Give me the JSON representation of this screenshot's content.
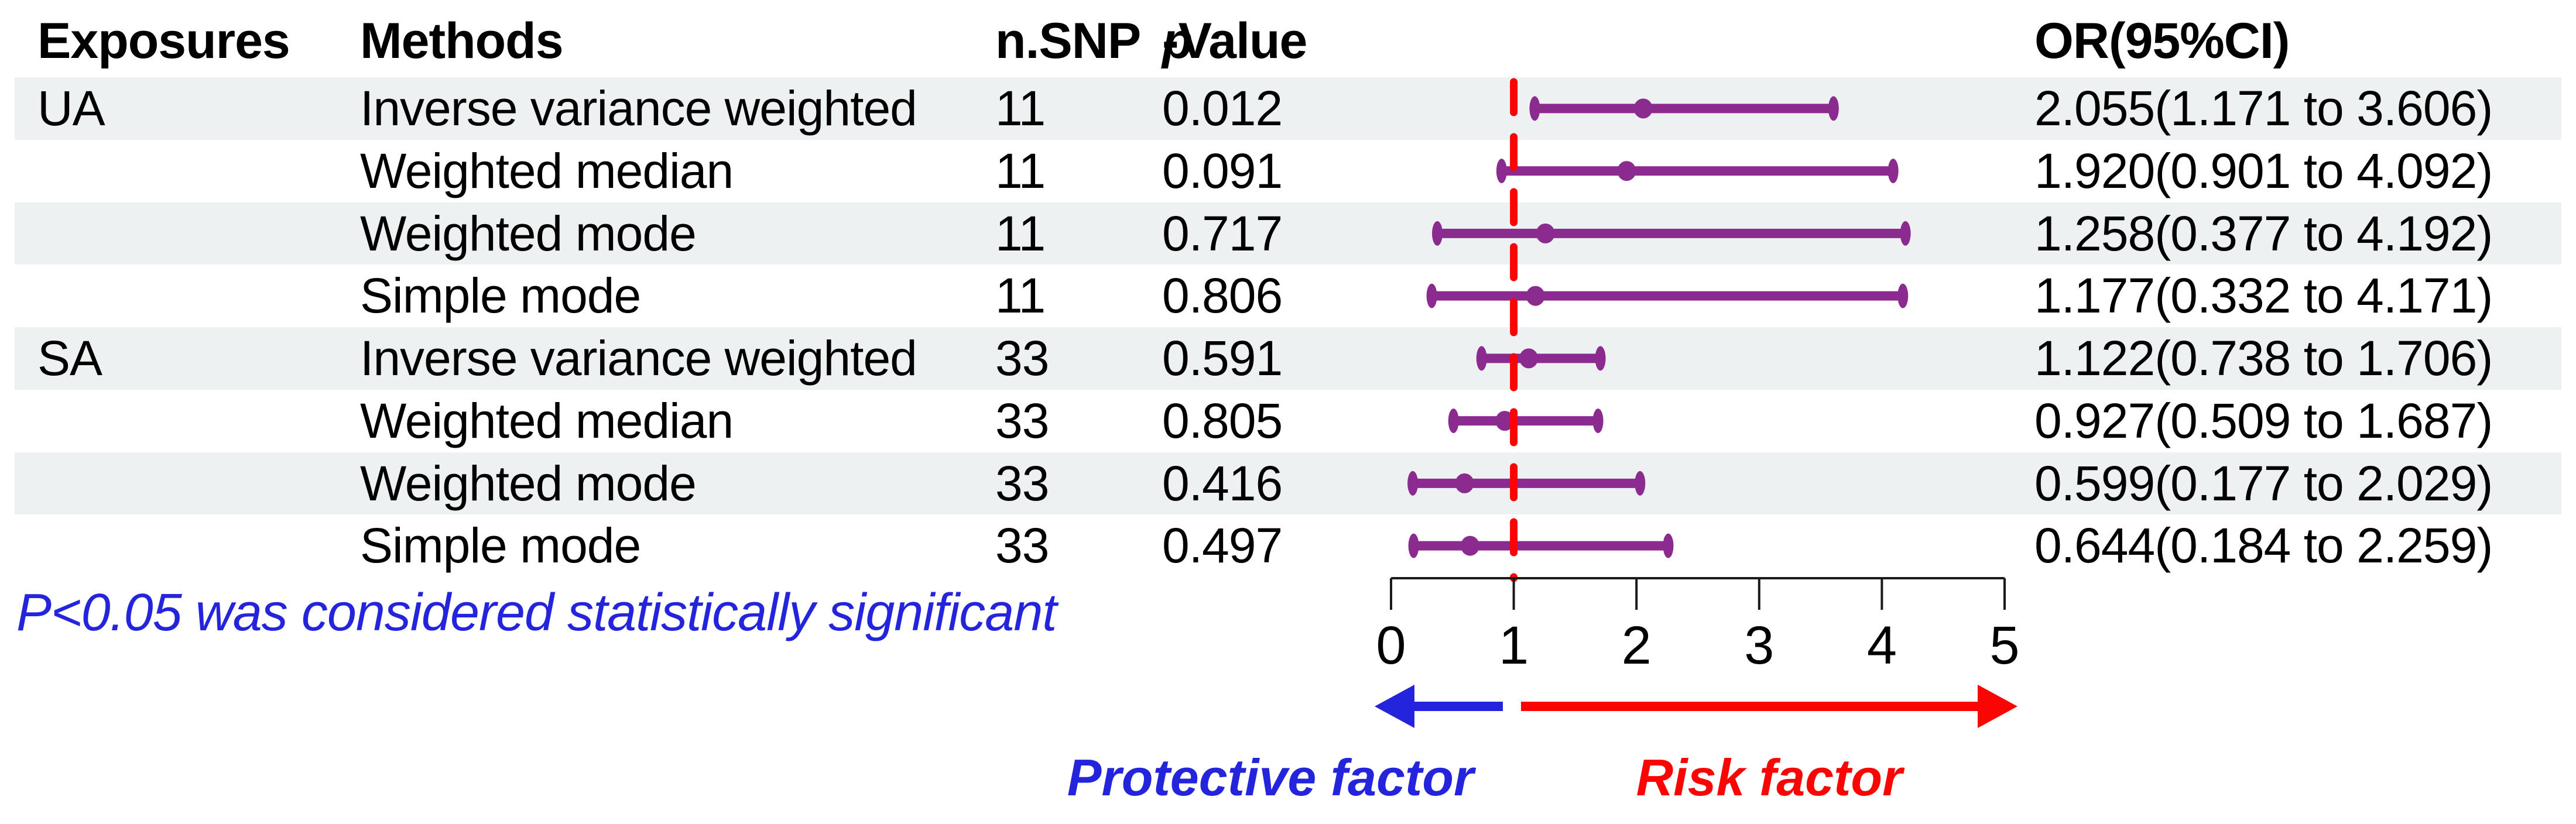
{
  "header": {
    "exposures": "Exposures",
    "methods": "Methods",
    "nsnp": "n.SNP",
    "pvalue_p": "p",
    "pvalue_rest": "-Value",
    "or_ci": "OR(95%CI)"
  },
  "chart_data": {
    "type": "forest",
    "title": "",
    "x_axis": {
      "range": [
        0,
        5
      ],
      "ticks": [
        0,
        1,
        2,
        3,
        4,
        5
      ],
      "reference_line": 1
    },
    "rows": [
      {
        "exposure": "UA",
        "method": "Inverse variance weighted",
        "nsnp": "11",
        "pvalue": "0.012",
        "est": 2.055,
        "lo": 1.171,
        "hi": 3.606,
        "or_ci": "2.055(1.171 to 3.606)"
      },
      {
        "exposure": "",
        "method": "Weighted median",
        "nsnp": "11",
        "pvalue": "0.091",
        "est": 1.92,
        "lo": 0.901,
        "hi": 4.092,
        "or_ci": "1.920(0.901 to 4.092)"
      },
      {
        "exposure": "",
        "method": "Weighted mode",
        "nsnp": "11",
        "pvalue": "0.717",
        "est": 1.258,
        "lo": 0.377,
        "hi": 4.192,
        "or_ci": "1.258(0.377 to 4.192)"
      },
      {
        "exposure": "",
        "method": "Simple mode",
        "nsnp": "11",
        "pvalue": "0.806",
        "est": 1.177,
        "lo": 0.332,
        "hi": 4.171,
        "or_ci": "1.177(0.332 to 4.171)"
      },
      {
        "exposure": "SA",
        "method": "Inverse variance weighted",
        "nsnp": "33",
        "pvalue": "0.591",
        "est": 1.122,
        "lo": 0.738,
        "hi": 1.706,
        "or_ci": "1.122(0.738 to 1.706)"
      },
      {
        "exposure": "",
        "method": "Weighted median",
        "nsnp": "33",
        "pvalue": "0.805",
        "est": 0.927,
        "lo": 0.509,
        "hi": 1.687,
        "or_ci": "0.927(0.509 to 1.687)"
      },
      {
        "exposure": "",
        "method": "Weighted mode",
        "nsnp": "33",
        "pvalue": "0.416",
        "est": 0.599,
        "lo": 0.177,
        "hi": 2.029,
        "or_ci": "0.599(0.177 to 2.029)"
      },
      {
        "exposure": "",
        "method": "Simple mode",
        "nsnp": "33",
        "pvalue": "0.497",
        "est": 0.644,
        "lo": 0.184,
        "hi": 2.259,
        "or_ci": "0.644(0.184 to 2.259)"
      }
    ],
    "annotations": {
      "footnote": "P<0.05 was considered statistically significant",
      "left_arrow_label": "Protective factor",
      "right_arrow_label": "Risk factor"
    },
    "legend_position": "none",
    "grid": false,
    "colors": {
      "marker": "#8b2a8f",
      "reference_line": "#fb0404",
      "protective_blue": "#2424dd",
      "risk_red": "#fb0404",
      "row_band": "#edf1f1",
      "axis": "#1a1a1a",
      "text": "#000000"
    }
  }
}
